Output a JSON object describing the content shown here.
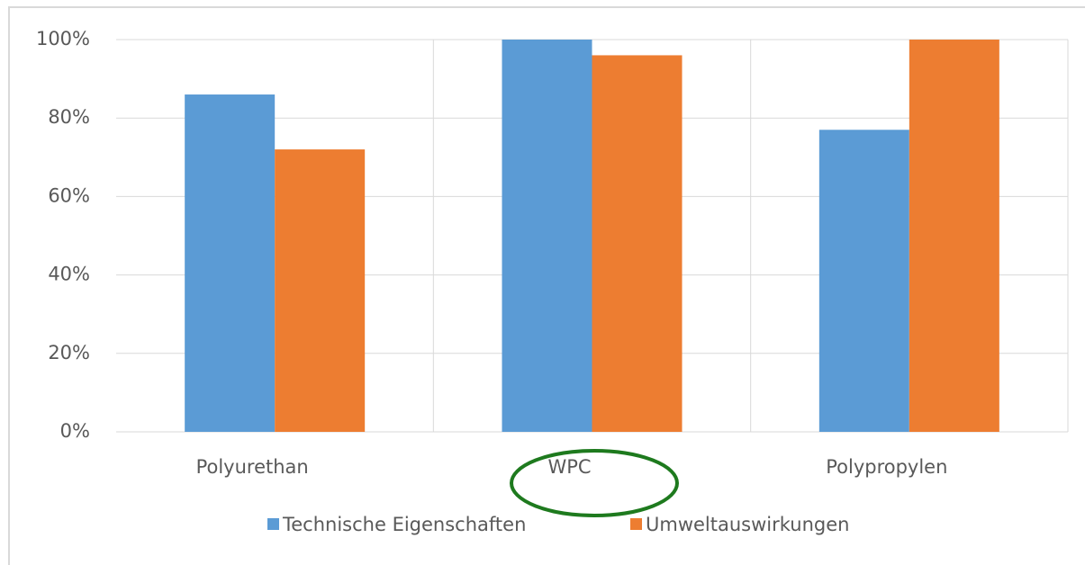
{
  "chart_data": {
    "type": "bar",
    "categories": [
      "Polyurethan",
      "WPC",
      "Polypropylen"
    ],
    "series": [
      {
        "name": "Technische Eigenschaften",
        "color": "#5b9bd5",
        "values": [
          86,
          100,
          77
        ]
      },
      {
        "name": "Umweltauswirkungen",
        "color": "#ed7d31",
        "values": [
          72,
          96,
          100
        ]
      }
    ],
    "ylim": [
      0,
      100
    ],
    "yticks": [
      {
        "value": 0,
        "label": "0%"
      },
      {
        "value": 20,
        "label": "20%"
      },
      {
        "value": 40,
        "label": "40%"
      },
      {
        "value": 60,
        "label": "60%"
      },
      {
        "value": 80,
        "label": "80%"
      },
      {
        "value": 100,
        "label": "100%"
      }
    ],
    "grid": true,
    "legend": "bottom"
  }
}
